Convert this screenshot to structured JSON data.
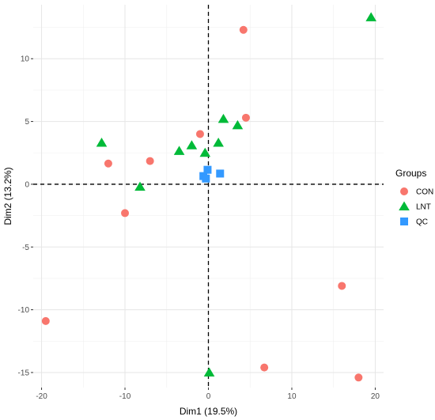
{
  "chart_data": {
    "type": "scatter",
    "xlabel": "Dim1 (19.5%)",
    "ylabel": "Dim2 (13.2%)",
    "xlim": [
      -21,
      21
    ],
    "ylim": [
      -16.2,
      14.3
    ],
    "x_ticks": [
      -20,
      -10,
      0,
      10,
      20
    ],
    "y_ticks": [
      -15,
      -10,
      -5,
      0,
      5,
      10
    ],
    "x_tick_labels": [
      "-20",
      "-10",
      "0",
      "10",
      "20"
    ],
    "y_tick_labels": [
      "-15",
      "-10",
      "-5",
      "0",
      "5",
      "10"
    ],
    "grid": true,
    "reference_lines": {
      "x": 0,
      "y": 0,
      "style": "dashed"
    },
    "legend": {
      "title": "Groups",
      "placement": "right"
    },
    "series": [
      {
        "name": "CON",
        "marker": "circle",
        "color": "#F8766D",
        "points": [
          [
            4.2,
            12.3
          ],
          [
            4.5,
            5.3
          ],
          [
            -1.0,
            4.0
          ],
          [
            -12.0,
            1.65
          ],
          [
            -7.0,
            1.85
          ],
          [
            -10.0,
            -2.3
          ],
          [
            -19.5,
            -10.9
          ],
          [
            16.0,
            -8.1
          ],
          [
            6.7,
            -14.6
          ],
          [
            18.0,
            -15.4
          ]
        ]
      },
      {
        "name": "LNT",
        "marker": "triangle",
        "color": "#00BA38",
        "points": [
          [
            19.5,
            13.3
          ],
          [
            1.8,
            5.2
          ],
          [
            3.5,
            4.7
          ],
          [
            1.2,
            3.3
          ],
          [
            -2.0,
            3.1
          ],
          [
            -3.5,
            2.65
          ],
          [
            -0.4,
            2.5
          ],
          [
            -12.8,
            3.3
          ],
          [
            -8.2,
            -0.2
          ],
          [
            0.1,
            -15.0
          ]
        ]
      },
      {
        "name": "QC",
        "marker": "square",
        "color": "#3399FF",
        "points": [
          [
            -0.1,
            1.15
          ],
          [
            1.4,
            0.85
          ],
          [
            -0.6,
            0.65
          ],
          [
            -0.3,
            0.45
          ]
        ]
      }
    ]
  }
}
